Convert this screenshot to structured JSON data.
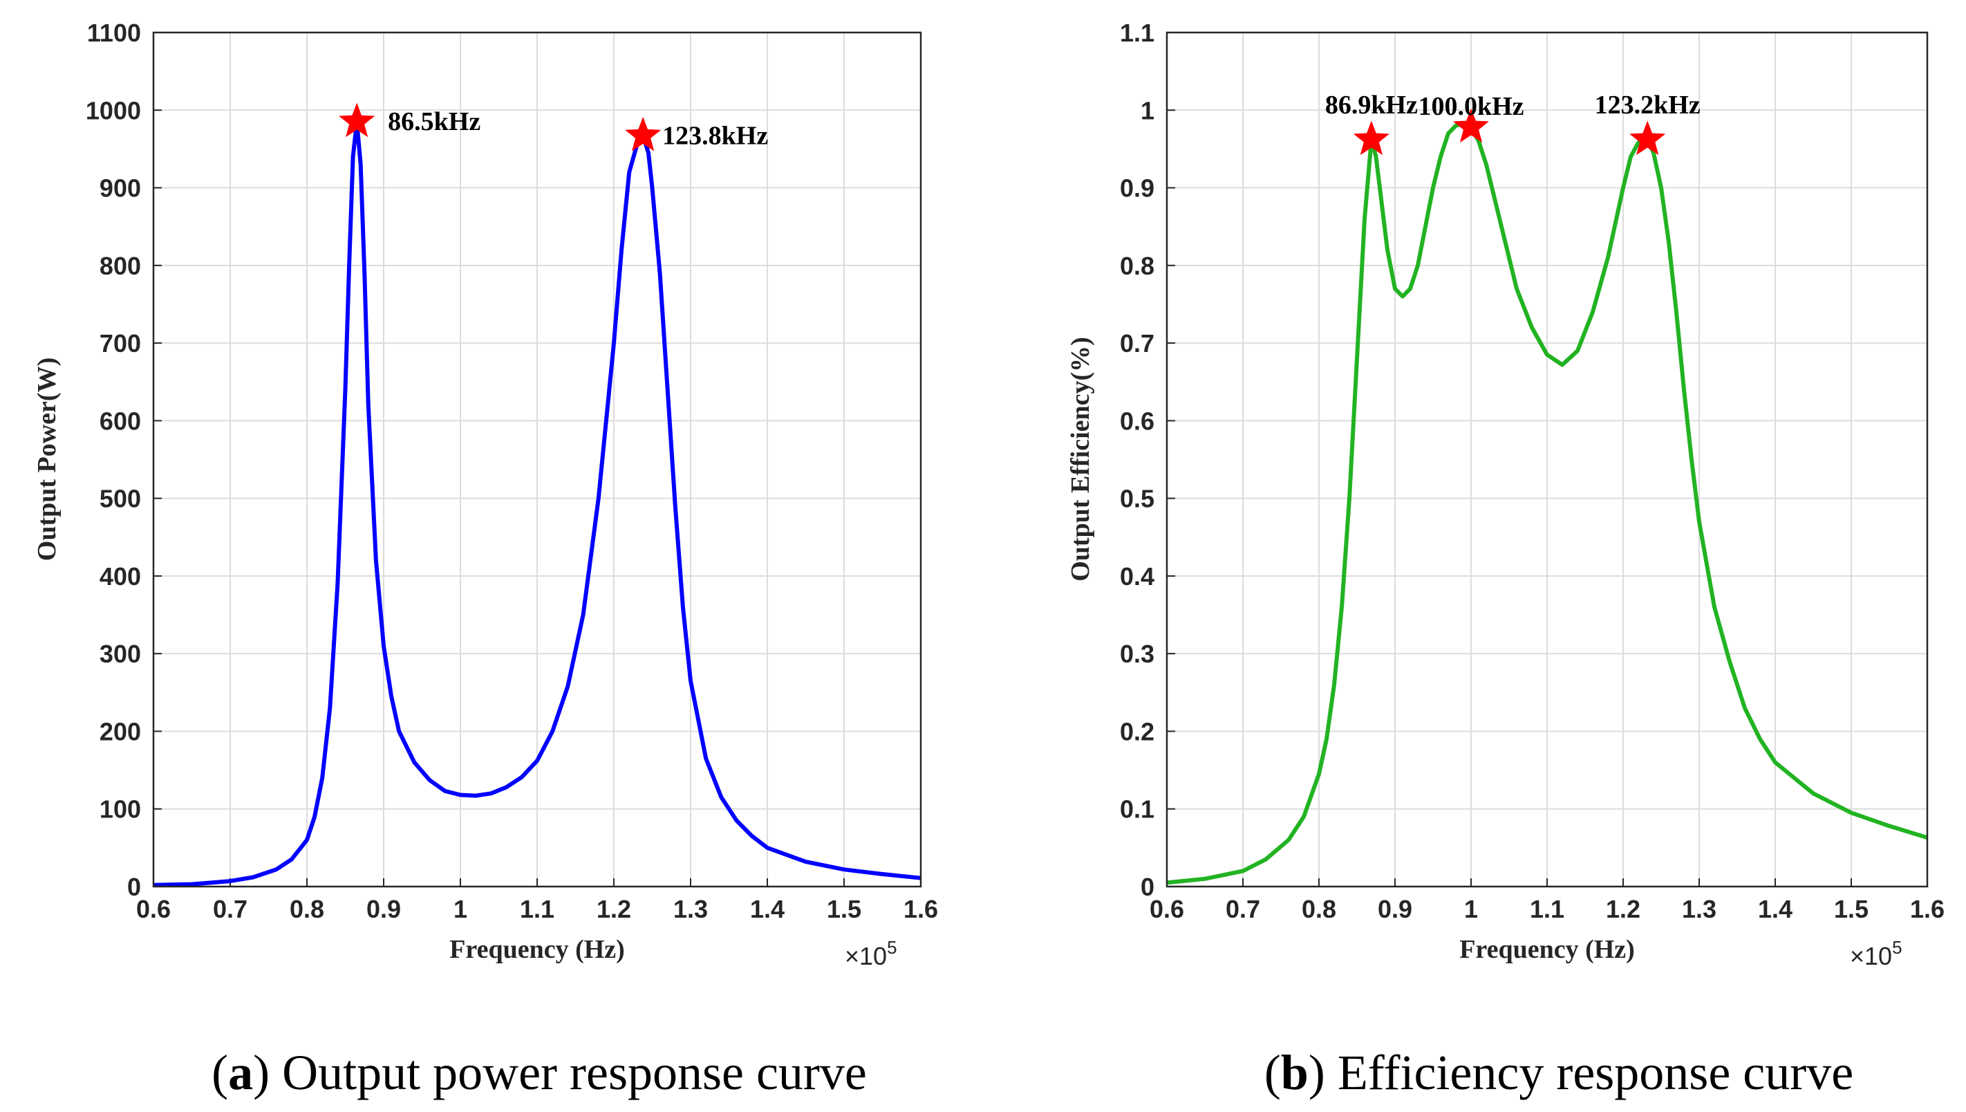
{
  "chart_data": [
    {
      "type": "line",
      "caption_letter": "a",
      "caption_text": "Output power response curve",
      "title": "",
      "xlabel": "Frequency (Hz)",
      "ylabel": "Output Power(W)",
      "x_multiplier": "×10",
      "x_multiplier_exp": "5",
      "xlim": [
        0.6,
        1.6
      ],
      "ylim": [
        0,
        1100
      ],
      "xticks": [
        "0.6",
        "0.7",
        "0.8",
        "0.9",
        "1",
        "1.1",
        "1.2",
        "1.3",
        "1.4",
        "1.5",
        "1.6"
      ],
      "yticks": [
        "0",
        "100",
        "200",
        "300",
        "400",
        "500",
        "600",
        "700",
        "800",
        "900",
        "1000",
        "1100"
      ],
      "grid": true,
      "series": [
        {
          "name": "Output power",
          "color": "#0000ff",
          "x": [
            0.6,
            0.65,
            0.7,
            0.73,
            0.76,
            0.78,
            0.8,
            0.81,
            0.82,
            0.83,
            0.84,
            0.85,
            0.855,
            0.86,
            0.865,
            0.87,
            0.875,
            0.88,
            0.89,
            0.9,
            0.91,
            0.92,
            0.94,
            0.96,
            0.98,
            1.0,
            1.02,
            1.04,
            1.06,
            1.08,
            1.1,
            1.12,
            1.14,
            1.16,
            1.18,
            1.2,
            1.21,
            1.22,
            1.23,
            1.238,
            1.245,
            1.25,
            1.26,
            1.27,
            1.28,
            1.29,
            1.3,
            1.32,
            1.34,
            1.36,
            1.38,
            1.4,
            1.45,
            1.5,
            1.55,
            1.6
          ],
          "y": [
            2,
            3,
            7,
            12,
            22,
            35,
            60,
            90,
            140,
            230,
            390,
            640,
            800,
            940,
            985,
            930,
            790,
            620,
            420,
            310,
            245,
            200,
            160,
            137,
            123,
            118,
            117,
            120,
            128,
            141,
            162,
            200,
            258,
            350,
            500,
            700,
            820,
            920,
            955,
            967,
            945,
            900,
            790,
            640,
            490,
            360,
            265,
            165,
            115,
            85,
            65,
            50,
            32,
            22,
            16,
            11
          ]
        }
      ],
      "markers": [
        {
          "label": "86.5kHz",
          "x": 0.865,
          "y": 985,
          "color": "#ff0000"
        },
        {
          "label": "123.8kHz",
          "x": 1.238,
          "y": 967,
          "color": "#ff0000"
        }
      ]
    },
    {
      "type": "line",
      "caption_letter": "b",
      "caption_text": "Efficiency response curve",
      "title": "",
      "xlabel": "Frequency (Hz)",
      "ylabel": "Output Efficiency(%)",
      "x_multiplier": "×10",
      "x_multiplier_exp": "5",
      "xlim": [
        0.6,
        1.6
      ],
      "ylim": [
        0,
        1.1
      ],
      "xticks": [
        "0.6",
        "0.7",
        "0.8",
        "0.9",
        "1",
        "1.1",
        "1.2",
        "1.3",
        "1.4",
        "1.5",
        "1.6"
      ],
      "yticks": [
        "0",
        "0.1",
        "0.2",
        "0.3",
        "0.4",
        "0.5",
        "0.6",
        "0.7",
        "0.8",
        "0.9",
        "1",
        "1.1"
      ],
      "grid": true,
      "series": [
        {
          "name": "Efficiency",
          "color": "#22b322",
          "x": [
            0.6,
            0.65,
            0.7,
            0.73,
            0.76,
            0.78,
            0.8,
            0.81,
            0.82,
            0.83,
            0.84,
            0.85,
            0.86,
            0.869,
            0.875,
            0.88,
            0.89,
            0.9,
            0.91,
            0.92,
            0.93,
            0.94,
            0.95,
            0.96,
            0.97,
            0.98,
            0.99,
            1.0,
            1.01,
            1.02,
            1.03,
            1.04,
            1.05,
            1.06,
            1.08,
            1.1,
            1.12,
            1.14,
            1.16,
            1.18,
            1.2,
            1.21,
            1.22,
            1.232,
            1.24,
            1.25,
            1.26,
            1.27,
            1.28,
            1.29,
            1.3,
            1.32,
            1.34,
            1.36,
            1.38,
            1.4,
            1.45,
            1.5,
            1.55,
            1.6
          ],
          "y": [
            0.005,
            0.01,
            0.02,
            0.035,
            0.06,
            0.09,
            0.145,
            0.19,
            0.26,
            0.36,
            0.5,
            0.68,
            0.86,
            0.962,
            0.94,
            0.9,
            0.82,
            0.77,
            0.76,
            0.77,
            0.8,
            0.85,
            0.9,
            0.94,
            0.97,
            0.98,
            0.983,
            0.979,
            0.96,
            0.93,
            0.89,
            0.85,
            0.81,
            0.77,
            0.72,
            0.685,
            0.672,
            0.69,
            0.74,
            0.81,
            0.9,
            0.94,
            0.958,
            0.962,
            0.945,
            0.9,
            0.83,
            0.74,
            0.64,
            0.55,
            0.47,
            0.36,
            0.29,
            0.23,
            0.19,
            0.16,
            0.12,
            0.095,
            0.078,
            0.063
          ]
        }
      ],
      "markers": [
        {
          "label": "86.9kHz",
          "x": 0.869,
          "y": 0.962,
          "color": "#ff0000"
        },
        {
          "label": "100.0kHz",
          "x": 1.0,
          "y": 0.978,
          "color": "#ff0000"
        },
        {
          "label": "123.2kHz",
          "x": 1.232,
          "y": 0.962,
          "color": "#ff0000"
        }
      ]
    }
  ]
}
